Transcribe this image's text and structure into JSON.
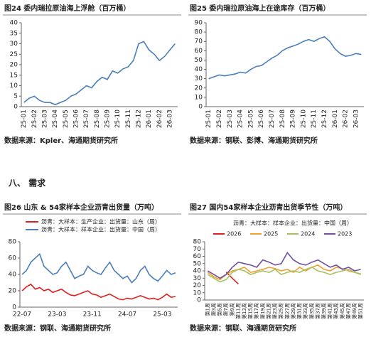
{
  "section_heading": "八、 需求",
  "chart_data": [
    {
      "type": "line",
      "title": "图24  委内瑞拉原油海上浮舱（百万桶）",
      "source": "数据来源：Kpler、海通期货研究所",
      "categories": [
        "25-01",
        null,
        "25-02",
        null,
        "25-03",
        null,
        "25-04",
        null,
        "25-05",
        null,
        "25-06",
        null,
        "25-07",
        null,
        "25-08",
        null,
        "25-09",
        null,
        "25-10",
        null,
        "25-11",
        null,
        "25-12",
        null,
        "26-01",
        null,
        "26-02",
        null,
        "26-03",
        null
      ],
      "series": [
        {
          "name": null,
          "color": "#4a7ebb",
          "values": [
            2,
            4,
            5,
            3,
            2,
            2,
            1,
            2,
            3,
            5,
            6,
            8,
            10,
            9,
            12,
            14,
            13,
            17,
            16,
            18,
            19,
            22,
            30,
            31,
            27,
            25,
            22,
            24,
            27,
            30
          ]
        }
      ],
      "ylim": [
        0,
        40
      ],
      "yticks": [
        0,
        5,
        10,
        15,
        20,
        25,
        30,
        35,
        40
      ]
    },
    {
      "type": "line",
      "title": "图25  委内瑞拉原油海上在途库存（百万桶）",
      "source": "数据来源：钢联、彭博、海通期货研究所",
      "categories": [
        "25-01",
        null,
        "25-02",
        null,
        "25-03",
        null,
        "25-04",
        null,
        "25-05",
        null,
        "25-06",
        null,
        "25-07",
        null,
        "25-08",
        null,
        "25-09",
        null,
        "25-10",
        null,
        "25-11",
        null,
        "25-12",
        null,
        "26-01",
        null,
        "26-02",
        null,
        "26-03",
        null
      ],
      "series": [
        {
          "name": null,
          "color": "#4a7ebb",
          "values": [
            30,
            32,
            34,
            33,
            34,
            35,
            37,
            36,
            40,
            43,
            44,
            48,
            52,
            55,
            60,
            63,
            65,
            67,
            70,
            72,
            70,
            73,
            75,
            70,
            62,
            57,
            54,
            55,
            57,
            56
          ]
        }
      ],
      "ylim": [
        0,
        90
      ],
      "yticks": [
        0,
        10,
        20,
        30,
        40,
        50,
        60,
        70,
        80,
        90
      ]
    },
    {
      "type": "line",
      "title": "图26  山东 & 54家样本企业沥青出货量（万吨）",
      "source": "数据来源：钢联、海通期货研究所",
      "categories": [
        "22-07",
        null,
        null,
        null,
        null,
        null,
        null,
        null,
        "23-03",
        null,
        null,
        null,
        null,
        null,
        null,
        null,
        "23-11",
        null,
        null,
        null,
        null,
        null,
        null,
        null,
        "24-07",
        null,
        null,
        null,
        null,
        null,
        null,
        null,
        "25-03",
        null,
        null,
        null
      ],
      "series": [
        {
          "name": "沥青：大样本：生产企业：出货量：山东（周）",
          "color": "#e02020",
          "values": [
            20,
            25,
            28,
            22,
            24,
            20,
            22,
            18,
            20,
            22,
            18,
            15,
            14,
            16,
            18,
            20,
            16,
            15,
            12,
            14,
            16,
            13,
            10,
            9,
            11,
            10,
            12,
            14,
            12,
            10,
            11,
            9,
            12,
            16,
            12,
            13
          ]
        },
        {
          "name": "沥青：大样本：样本企业：出货量：中国（周）",
          "color": "#4a7ebb",
          "values": [
            40,
            45,
            55,
            60,
            65,
            50,
            45,
            40,
            42,
            50,
            55,
            45,
            35,
            38,
            40,
            50,
            45,
            42,
            40,
            48,
            55,
            45,
            40,
            35,
            38,
            30,
            35,
            45,
            50,
            40,
            35,
            32,
            38,
            45,
            40,
            42
          ]
        }
      ],
      "ylim": [
        0,
        80
      ],
      "yticks": [
        0,
        20,
        40,
        60,
        80
      ]
    },
    {
      "type": "line",
      "title": "图27  国内54家样本企业沥青出货季节性（万吨）",
      "source": "数据来源：钢联、海通期货研究所",
      "legend_title": "沥青：大样本：样本企业：出货量：中国（周）",
      "categories": [
        "第1周",
        "第3周",
        "第5周",
        "第7周",
        "第9周",
        "第11周",
        "第13周",
        "第15周",
        "第17周",
        "第19周",
        "第21周",
        "第23周",
        "第25周",
        "第27周",
        "第29周",
        "第31周",
        "第33周",
        "第35周",
        "第37周",
        "第39周",
        "第41周",
        "第43周",
        "第45周",
        "第47周",
        "第49周",
        "第51周"
      ],
      "series": [
        {
          "name": "2026",
          "color": "#e02020",
          "values": [
            null,
            null,
            null,
            38,
            30,
            22,
            null,
            null,
            null,
            null,
            null,
            null,
            null,
            null,
            null,
            null,
            null,
            null,
            null,
            null,
            null,
            null,
            null,
            null,
            null,
            null
          ]
        },
        {
          "name": "2025",
          "color": "#f0a030",
          "values": [
            38,
            32,
            28,
            35,
            40,
            42,
            45,
            38,
            40,
            42,
            45,
            43,
            40,
            42,
            38,
            45,
            40,
            45,
            48,
            42,
            40,
            45,
            43,
            40,
            38,
            36
          ]
        },
        {
          "name": "2024",
          "color": "#a8c060",
          "values": [
            35,
            30,
            25,
            28,
            38,
            42,
            40,
            35,
            38,
            40,
            38,
            42,
            35,
            38,
            40,
            38,
            42,
            45,
            40,
            38,
            35,
            38,
            40,
            42,
            38,
            35
          ]
        },
        {
          "name": "2023",
          "color": "#7050a0",
          "values": [
            40,
            35,
            30,
            35,
            45,
            52,
            50,
            48,
            45,
            55,
            52,
            48,
            50,
            65,
            55,
            50,
            48,
            52,
            55,
            50,
            45,
            48,
            42,
            45,
            40,
            42
          ]
        }
      ],
      "ylim": [
        0,
        80
      ],
      "yticks": [
        0,
        10,
        20,
        30,
        40,
        50,
        60,
        70,
        80
      ]
    }
  ]
}
